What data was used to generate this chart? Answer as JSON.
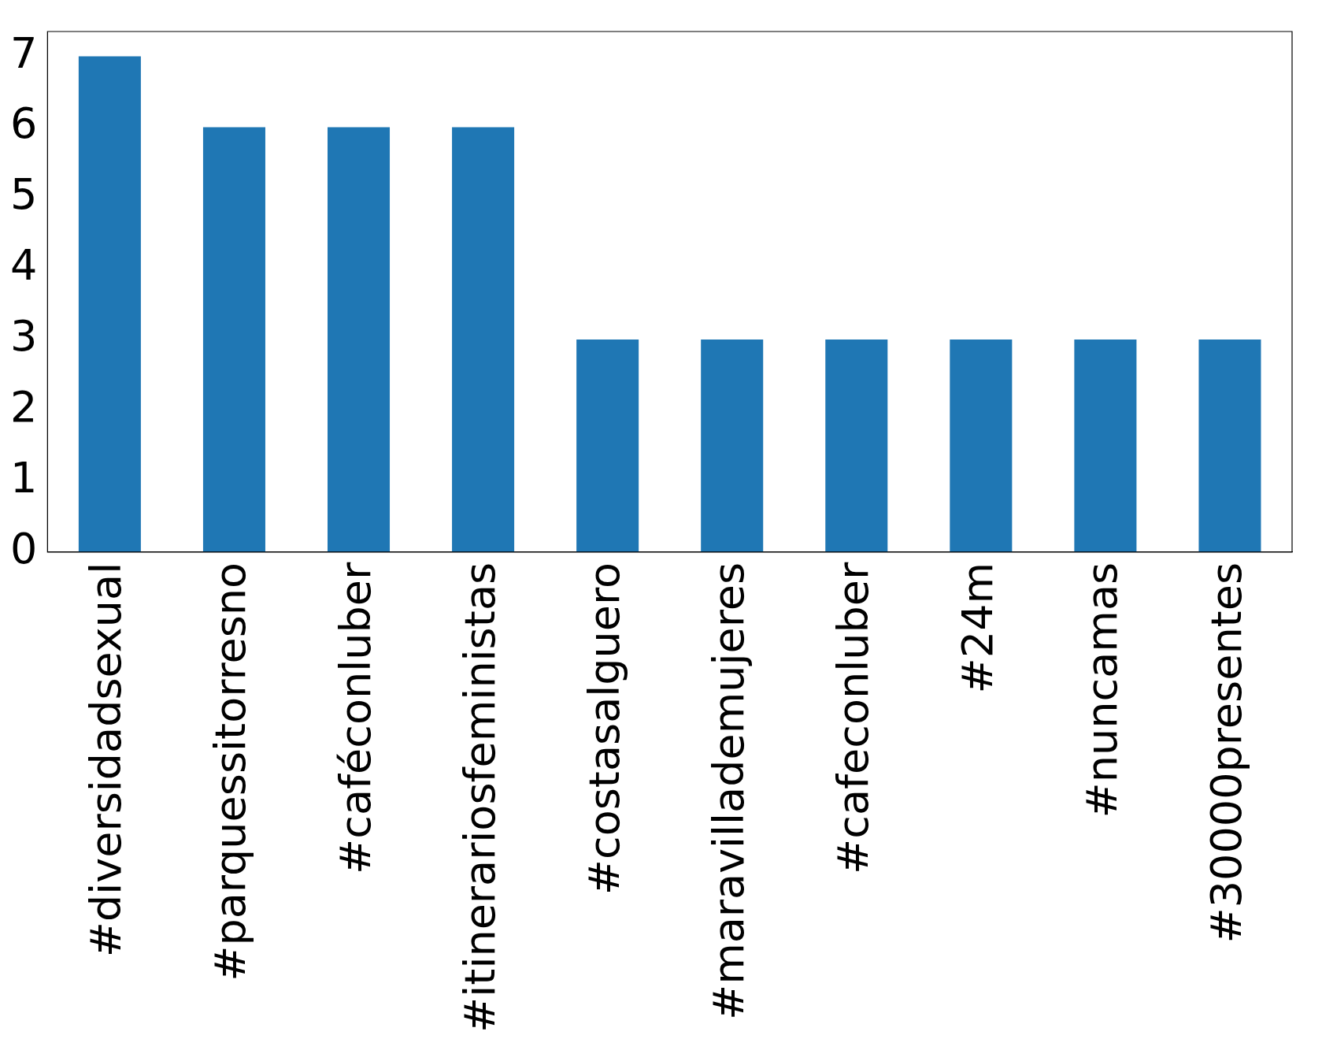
{
  "chart_data": {
    "type": "bar",
    "categories": [
      "#diversidadsexual",
      "#parquessitorresno",
      "#caféconluber",
      "#itinerariosfeministas",
      "#costasalguero",
      "#maravillademujeres",
      "#cafeconluber",
      "#24m",
      "#nuncamas",
      "#30000presentes"
    ],
    "values": [
      7,
      6,
      6,
      6,
      3,
      3,
      3,
      3,
      3,
      3
    ],
    "color": "#1f77b4",
    "ylim": [
      0,
      7.35
    ],
    "yticks": [
      0,
      1,
      2,
      3,
      4,
      5,
      6,
      7
    ],
    "grid": false,
    "legend": false
  }
}
